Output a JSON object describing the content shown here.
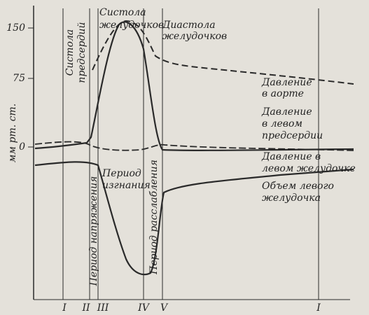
{
  "axis": {
    "label": "мм рт. ст.",
    "ticks": [
      "150",
      "75",
      "0"
    ]
  },
  "phases": {
    "atrial_systole": [
      "Систола",
      "предсердий"
    ],
    "ventricular_systole": [
      "Систола",
      "желудочков"
    ],
    "ventricular_diastole": [
      "Диастола",
      "желудочков"
    ],
    "tension_period": "Период напряжения",
    "ejection_period": [
      "Период",
      "изгнания"
    ],
    "relaxation_period": "Период расслабления"
  },
  "curves": {
    "aorta": [
      "Давление",
      "в аорте"
    ],
    "left_atrium": [
      "Давление",
      "в левом",
      "предсердии"
    ],
    "left_ventricle": [
      "Давление в",
      "левом желудочке"
    ],
    "volume": [
      "Объем левого",
      "желудочка"
    ]
  },
  "markers": [
    "I",
    "II",
    "III",
    "IV",
    "V",
    "I"
  ]
}
